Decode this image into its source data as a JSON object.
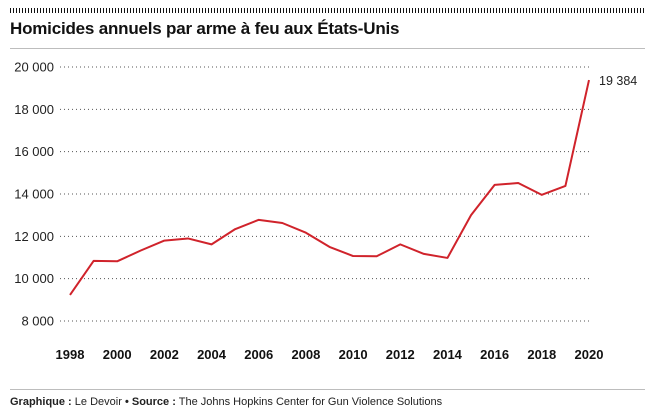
{
  "header": {
    "title": "Homicides annuels par arme à feu aux États-Unis"
  },
  "footer": {
    "graphique_label": "Graphique :",
    "graphique_value": "Le Devoir",
    "separator": "•",
    "source_label": "Source :",
    "source_value": "The Johns Hopkins Center for Gun Violence Solutions"
  },
  "colors": {
    "line": "#d0232b",
    "grid": "#555555"
  },
  "chart_data": {
    "type": "line",
    "title": "Homicides annuels par arme à feu aux États-Unis",
    "xlabel": "",
    "ylabel": "",
    "x": [
      1998,
      1999,
      2000,
      2001,
      2002,
      2003,
      2004,
      2005,
      2006,
      2007,
      2008,
      2009,
      2010,
      2011,
      2012,
      2013,
      2014,
      2015,
      2016,
      2017,
      2018,
      2019,
      2020
    ],
    "series": [
      {
        "name": "Homicides par arme à feu",
        "values": [
          9230,
          10840,
          10820,
          11330,
          11800,
          11900,
          11620,
          12340,
          12780,
          12630,
          12170,
          11500,
          11070,
          11060,
          11620,
          11170,
          10980,
          13000,
          14430,
          14520,
          13960,
          14380,
          19384
        ]
      }
    ],
    "ylim": [
      8000,
      20000
    ],
    "yticks": [
      8000,
      10000,
      12000,
      14000,
      16000,
      18000,
      20000
    ],
    "ytick_labels": [
      "8 000",
      "10 000",
      "12 000",
      "14 000",
      "16 000",
      "18 000",
      "20 000"
    ],
    "xticks": [
      1998,
      2000,
      2002,
      2004,
      2006,
      2008,
      2010,
      2012,
      2014,
      2016,
      2018,
      2020
    ],
    "xtick_labels": [
      "1998",
      "2000",
      "2002",
      "2004",
      "2006",
      "2008",
      "2010",
      "2012",
      "2014",
      "2016",
      "2018",
      "2020"
    ],
    "annotations": [
      {
        "x": 2020,
        "text": "19 384"
      }
    ],
    "grid": "horizontal-dotted",
    "legend": "none"
  }
}
